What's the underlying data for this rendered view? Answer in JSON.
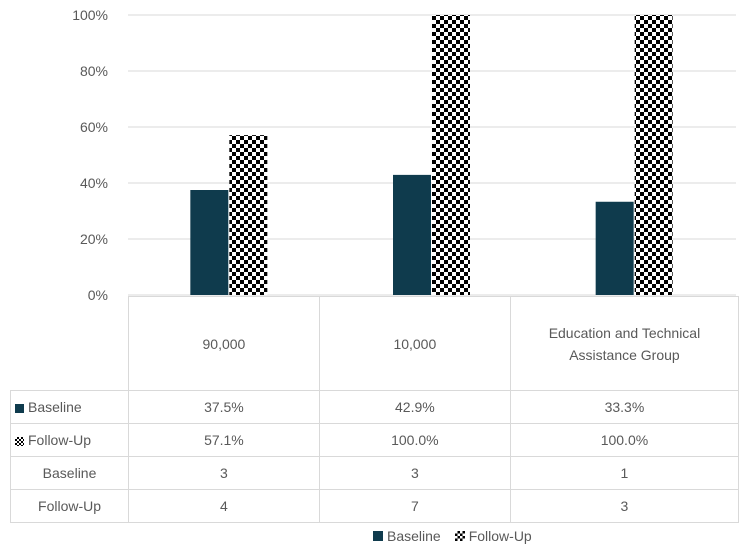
{
  "chart_data": {
    "type": "bar",
    "categories": [
      "90,000",
      "10,000",
      "Education and Technical Assistance Group"
    ],
    "series": [
      {
        "name": "Baseline",
        "values": [
          37.5,
          42.9,
          33.3
        ],
        "color": "#0f3b4d",
        "pattern": "solid"
      },
      {
        "name": "Follow-Up",
        "values": [
          57.1,
          100.0,
          100.0
        ],
        "color": "#000000",
        "pattern": "checkerboard"
      }
    ],
    "ylim": [
      0,
      100
    ],
    "yticks": [
      "0%",
      "20%",
      "40%",
      "60%",
      "80%",
      "100%"
    ],
    "grid": true,
    "legend": "bottom",
    "data_table": {
      "rows": [
        {
          "label": "Baseline",
          "values": [
            "37.5%",
            "42.9%",
            "33.3%"
          ],
          "key": "Baseline"
        },
        {
          "label": "Follow-Up",
          "values": [
            "57.1%",
            "100.0%",
            "100.0%"
          ],
          "key": "Follow-Up"
        },
        {
          "label": "Baseline",
          "values": [
            "3",
            "3",
            "1"
          ]
        },
        {
          "label": "Follow-Up",
          "values": [
            "4",
            "7",
            "3"
          ]
        }
      ]
    }
  },
  "legend": {
    "baseline": "Baseline",
    "followup": "Follow-Up"
  }
}
